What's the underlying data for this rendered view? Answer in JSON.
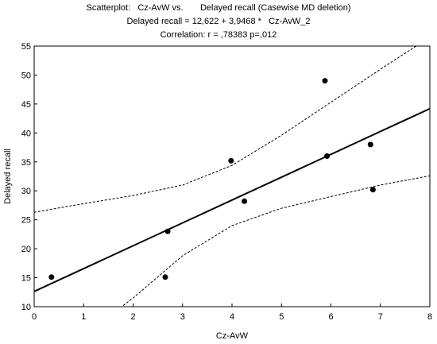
{
  "chart_data": {
    "type": "scatter",
    "title": "Scatterplot:   Cz-AvW vs.       Delayed recall (Casewise MD deletion)",
    "subtitle": "Delayed recall = 12,622 + 3,9468 *   Cz-AvW_2",
    "annotation": "Correlation: r = ,78383 p=,012",
    "xlabel": "Cz-AvW",
    "ylabel": "Delayed recall",
    "xlim": [
      0,
      8
    ],
    "ylim": [
      10,
      55
    ],
    "x_ticks": [
      0,
      1,
      2,
      3,
      4,
      5,
      6,
      7,
      8
    ],
    "y_ticks": [
      10,
      15,
      20,
      25,
      30,
      35,
      40,
      45,
      50,
      55
    ],
    "grid": false,
    "points": [
      {
        "x": 0.35,
        "y": 15.1
      },
      {
        "x": 2.65,
        "y": 15.1
      },
      {
        "x": 2.7,
        "y": 23.0
      },
      {
        "x": 3.98,
        "y": 35.2
      },
      {
        "x": 4.25,
        "y": 28.2
      },
      {
        "x": 5.88,
        "y": 49.0
      },
      {
        "x": 5.92,
        "y": 36.0
      },
      {
        "x": 6.8,
        "y": 38.0
      },
      {
        "x": 6.85,
        "y": 30.2
      }
    ],
    "regression": {
      "intercept": 12.622,
      "slope": 3.9468
    },
    "confidence_band": {
      "upper": [
        [
          0,
          26.3
        ],
        [
          1,
          27.8
        ],
        [
          2,
          29.2
        ],
        [
          3,
          31.0
        ],
        [
          4,
          34.4
        ],
        [
          5,
          39.6
        ],
        [
          6,
          45.3
        ],
        [
          7,
          51.0
        ],
        [
          7.45,
          53.5
        ],
        [
          8,
          56.5
        ]
      ],
      "lower": [
        [
          1.8,
          10.2
        ],
        [
          2,
          11.5
        ],
        [
          3,
          18.8
        ],
        [
          4,
          24.0
        ],
        [
          5,
          27.0
        ],
        [
          6,
          29.0
        ],
        [
          7,
          31.0
        ],
        [
          8,
          32.6
        ]
      ]
    },
    "colors": {
      "points": "#000000",
      "fit_line": "#000000",
      "band": "#000000",
      "background": "#ffffff"
    }
  }
}
